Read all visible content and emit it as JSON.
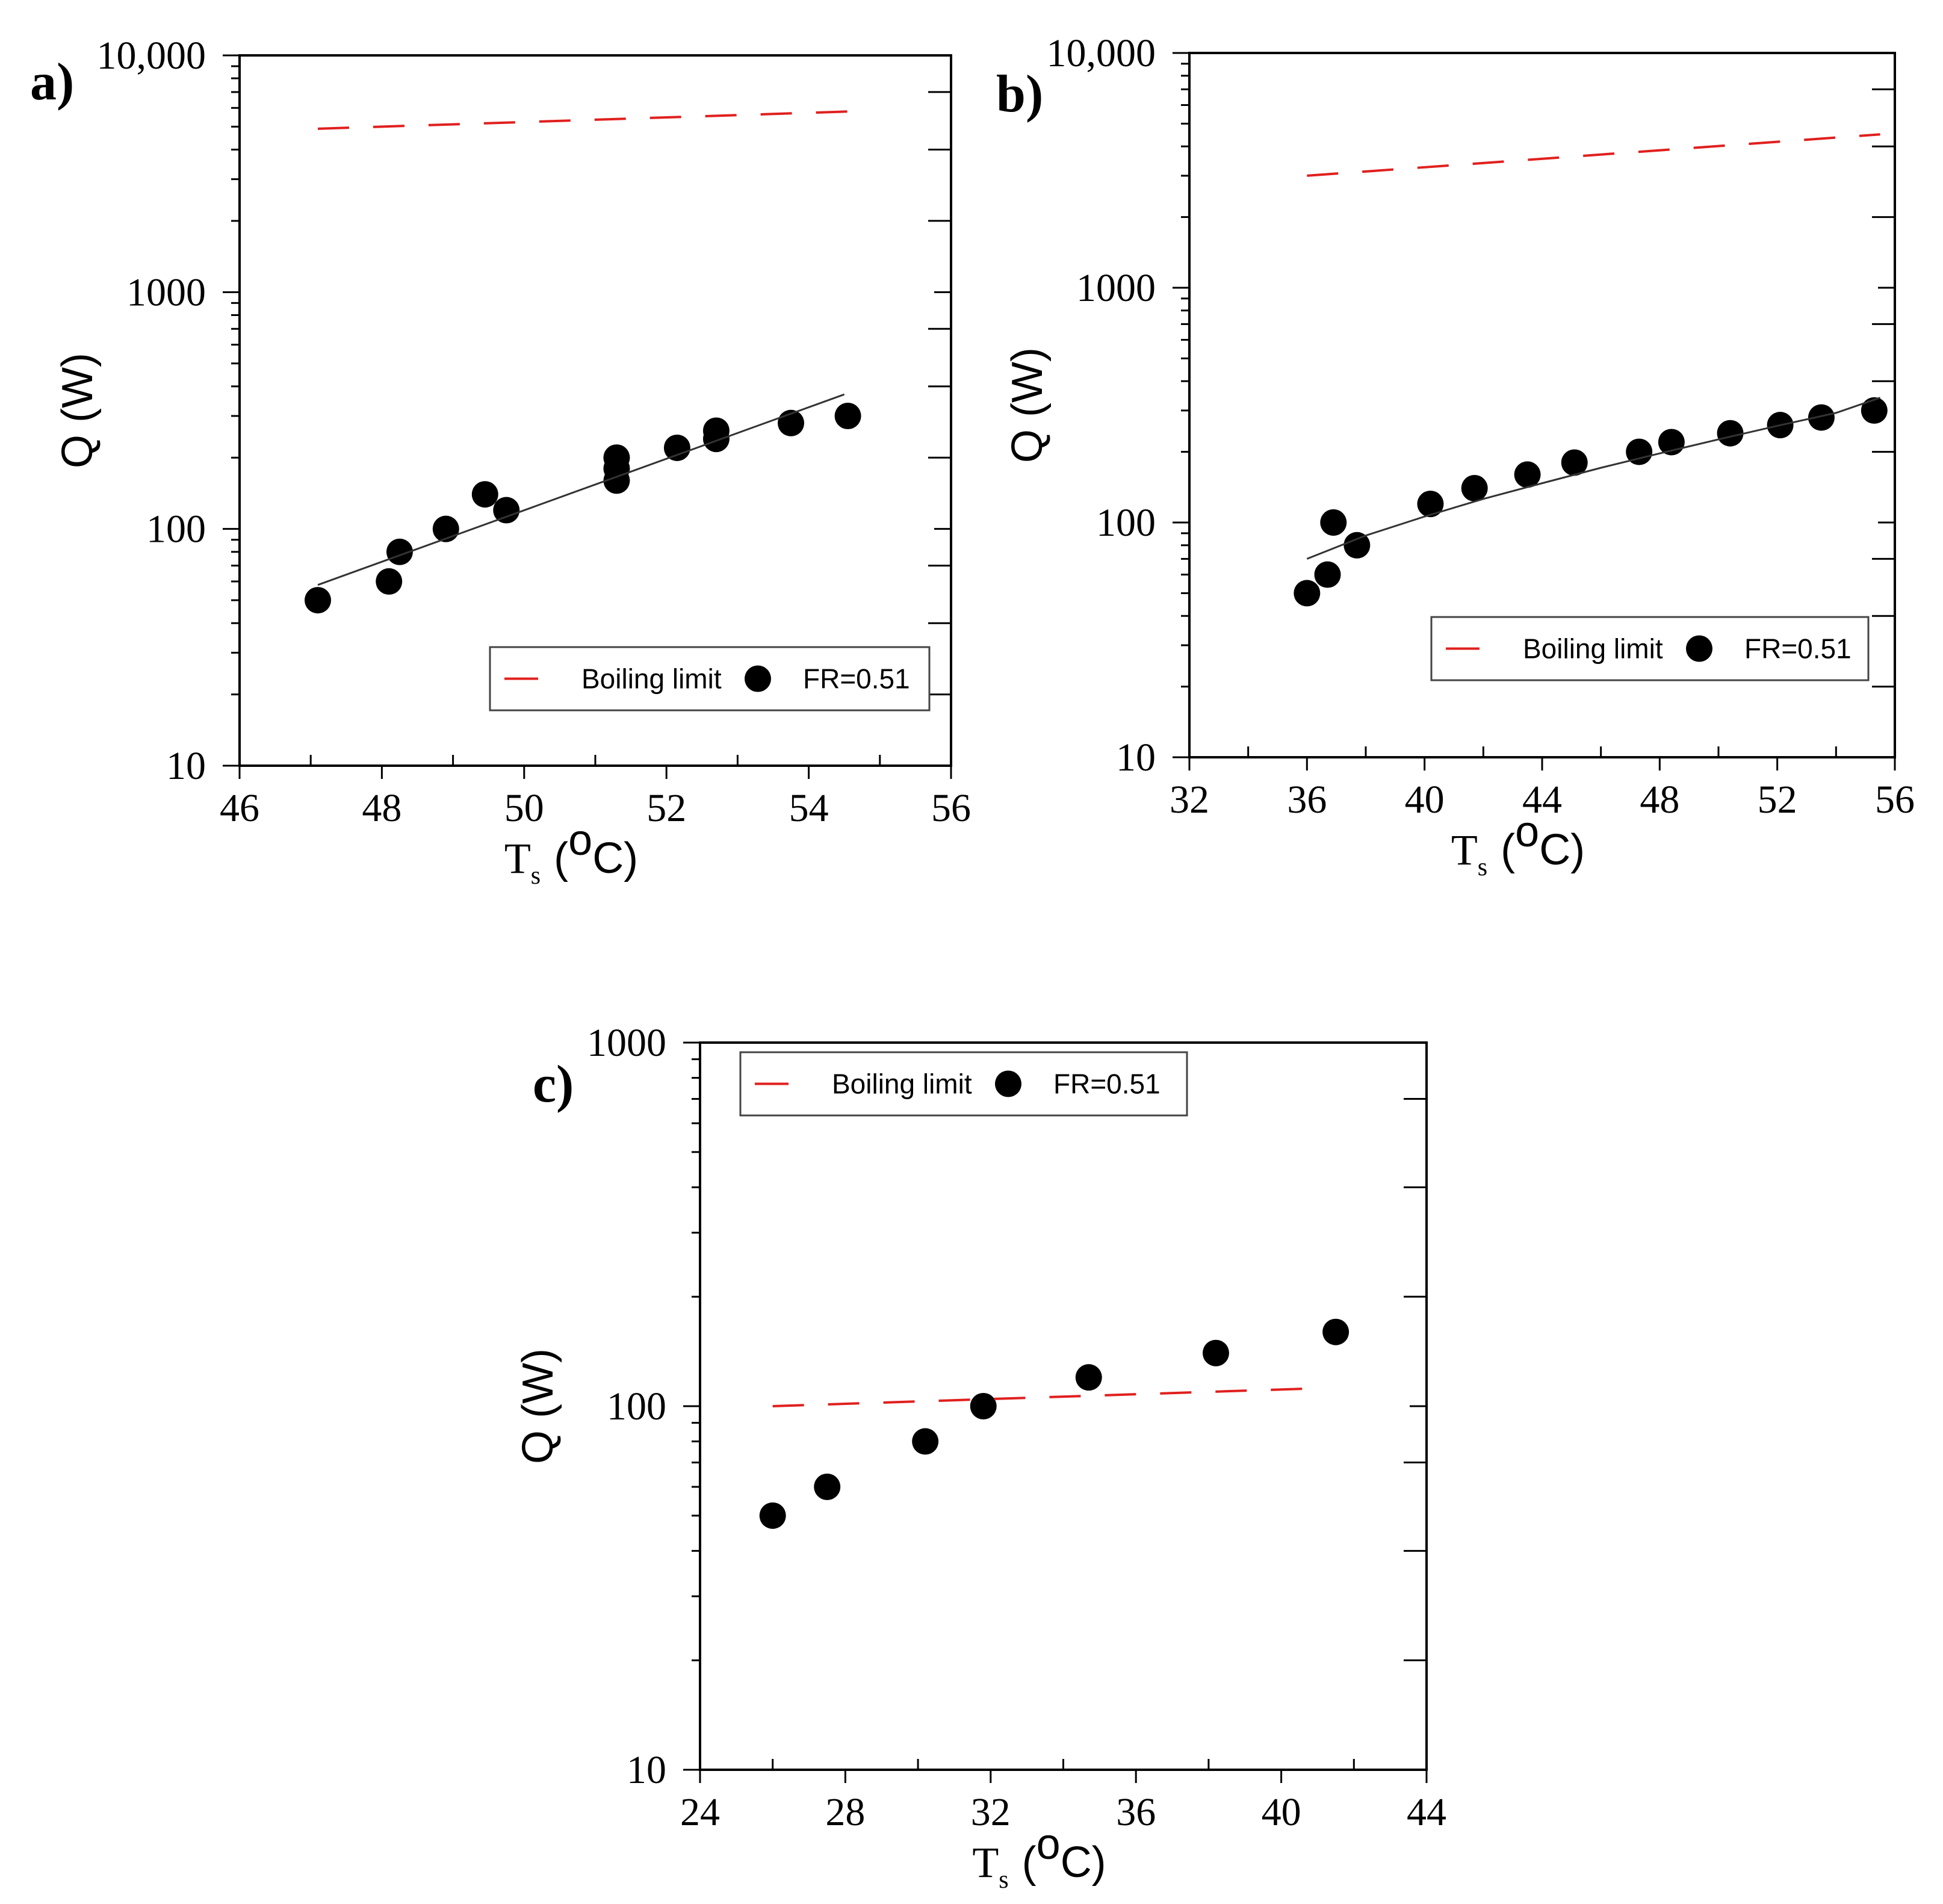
{
  "chart_data": [
    {
      "type": "scatter",
      "panel_label": "a)",
      "x_label_main": "T",
      "x_label_sub": "s",
      "x_label_unit": "(",
      "x_label_sup": "o",
      "x_label_unit_end": "C)",
      "ylabel": "Q (W)",
      "y_scale": "log",
      "xlim": [
        46,
        56
      ],
      "ylim": [
        10,
        10000
      ],
      "x_ticks": [
        46,
        48,
        50,
        52,
        54,
        56
      ],
      "x_tick_labels": [
        "46",
        "48",
        "50",
        "52",
        "54",
        "56"
      ],
      "y_ticks": [
        10,
        100,
        1000,
        10000
      ],
      "y_tick_labels": [
        "10",
        "100",
        "1000",
        "10,000"
      ],
      "legend": {
        "line_label": "Boiling limit",
        "marker_label": "FR=0.51",
        "position": "lower-right"
      },
      "series": [
        {
          "name": "FR=0.51",
          "kind": "points",
          "x": [
            47.1,
            48.1,
            48.25,
            48.9,
            49.45,
            49.75,
            51.3,
            51.3,
            51.3,
            52.15,
            52.7,
            52.7,
            53.75,
            54.55
          ],
          "y": [
            50,
            60,
            80,
            100,
            140,
            120,
            200,
            180,
            160,
            220,
            260,
            240,
            280,
            300
          ]
        },
        {
          "name": "Fit",
          "kind": "line",
          "x": [
            47.1,
            54.5
          ],
          "y": [
            58,
            370
          ]
        },
        {
          "name": "Boiling limit",
          "kind": "dashed",
          "x": [
            47.1,
            54.6
          ],
          "y": [
            4900,
            5800
          ]
        }
      ]
    },
    {
      "type": "scatter",
      "panel_label": "b)",
      "x_label_main": "T",
      "x_label_sub": "s",
      "x_label_unit": "(",
      "x_label_sup": "o",
      "x_label_unit_end": "C)",
      "ylabel": "Q (W)",
      "y_scale": "log",
      "xlim": [
        32,
        56
      ],
      "ylim": [
        10,
        10000
      ],
      "x_ticks": [
        32,
        36,
        40,
        44,
        48,
        52,
        56
      ],
      "x_tick_labels": [
        "32",
        "36",
        "40",
        "44",
        "48",
        "52",
        "56"
      ],
      "y_ticks": [
        10,
        100,
        1000,
        10000
      ],
      "y_tick_labels": [
        "10",
        "100",
        "1000",
        "10,000"
      ],
      "legend": {
        "line_label": "Boiling limit",
        "marker_label": "FR=0.51",
        "position": "lower-right"
      },
      "series": [
        {
          "name": "FR=0.51",
          "kind": "points",
          "x": [
            36.0,
            36.7,
            36.9,
            37.7,
            40.2,
            41.7,
            43.5,
            45.1,
            47.3,
            48.4,
            50.4,
            52.1,
            53.5,
            55.3
          ],
          "y": [
            50,
            60,
            100,
            80,
            120,
            140,
            160,
            180,
            200,
            220,
            240,
            260,
            280,
            300
          ]
        },
        {
          "name": "Fit",
          "kind": "curve",
          "x": [
            36,
            38,
            40,
            42,
            44,
            46,
            48,
            50,
            52,
            54,
            55.5
          ],
          "y": [
            70,
            88,
            106,
            126,
            147,
            171,
            197,
            226,
            258,
            293,
            340
          ]
        },
        {
          "name": "Boiling limit",
          "kind": "dashed",
          "x": [
            36,
            55.5
          ],
          "y": [
            3000,
            4500
          ]
        }
      ]
    },
    {
      "type": "scatter",
      "panel_label": "c)",
      "x_label_main": "T",
      "x_label_sub": "s",
      "x_label_unit": "(",
      "x_label_sup": "o",
      "x_label_unit_end": "C)",
      "ylabel": "Q (W)",
      "y_scale": "log",
      "xlim": [
        24,
        44
      ],
      "ylim": [
        10,
        1000
      ],
      "x_ticks": [
        24,
        28,
        32,
        36,
        40,
        44
      ],
      "x_tick_labels": [
        "24",
        "28",
        "32",
        "36",
        "40",
        "44"
      ],
      "y_ticks": [
        10,
        100,
        1000
      ],
      "y_tick_labels": [
        "10",
        "100",
        "1000"
      ],
      "legend": {
        "line_label": "Boiling limit",
        "marker_label": "FR=0.51",
        "position": "top-left"
      },
      "series": [
        {
          "name": "FR=0.51",
          "kind": "points",
          "x": [
            26.0,
            27.5,
            30.2,
            31.8,
            34.7,
            38.2,
            41.5
          ],
          "y": [
            50,
            60,
            80,
            100,
            120,
            140,
            160
          ]
        },
        {
          "name": "Boiling limit",
          "kind": "dashed",
          "x": [
            26.0,
            41.0
          ],
          "y": [
            100,
            112
          ]
        }
      ]
    }
  ]
}
